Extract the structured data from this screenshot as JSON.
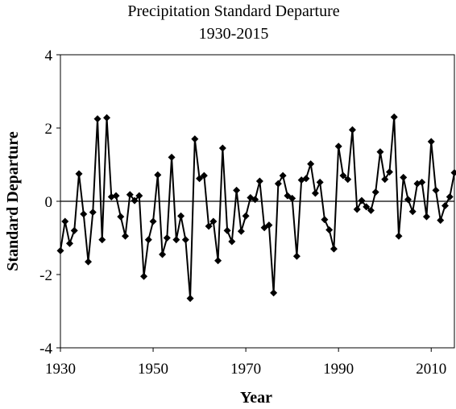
{
  "chart_data": {
    "type": "line",
    "title": "Precipitation Standard Departure",
    "subtitle": "1930-2015",
    "x_label": "Year",
    "y_label": "Standard Departure",
    "x": [
      1930,
      1931,
      1932,
      1933,
      1934,
      1935,
      1936,
      1937,
      1938,
      1939,
      1940,
      1941,
      1942,
      1943,
      1944,
      1945,
      1946,
      1947,
      1948,
      1949,
      1950,
      1951,
      1952,
      1953,
      1954,
      1955,
      1956,
      1957,
      1958,
      1959,
      1960,
      1961,
      1962,
      1963,
      1964,
      1965,
      1966,
      1967,
      1968,
      1969,
      1970,
      1971,
      1972,
      1973,
      1974,
      1975,
      1976,
      1977,
      1978,
      1979,
      1980,
      1981,
      1982,
      1983,
      1984,
      1985,
      1986,
      1987,
      1988,
      1989,
      1990,
      1991,
      1992,
      1993,
      1994,
      1995,
      1996,
      1997,
      1998,
      1999,
      2000,
      2001,
      2002,
      2003,
      2004,
      2005,
      2006,
      2007,
      2008,
      2009,
      2010,
      2011,
      2012,
      2013,
      2014,
      2015
    ],
    "series": [
      {
        "color": "#000000",
        "values": [
          -1.35,
          -0.55,
          -1.15,
          -0.8,
          0.75,
          -0.35,
          -1.65,
          -0.3,
          2.25,
          -1.05,
          2.28,
          0.12,
          0.15,
          -0.42,
          -0.95,
          0.18,
          0.02,
          0.15,
          -2.05,
          -1.05,
          -0.55,
          0.72,
          -1.45,
          -1.0,
          1.2,
          -1.05,
          -0.4,
          -1.05,
          -2.65,
          1.7,
          0.62,
          0.7,
          -0.68,
          -0.55,
          -1.62,
          1.45,
          -0.8,
          -1.1,
          0.3,
          -0.82,
          -0.4,
          0.1,
          0.05,
          0.55,
          -0.72,
          -0.65,
          -2.5,
          0.48,
          0.7,
          0.15,
          0.08,
          -1.5,
          0.58,
          0.62,
          1.02,
          0.22,
          0.52,
          -0.5,
          -0.78,
          -1.3,
          1.5,
          0.7,
          0.6,
          1.95,
          -0.22,
          0.02,
          -0.15,
          -0.25,
          0.25,
          1.35,
          0.6,
          0.8,
          2.3,
          -0.95,
          0.65,
          0.05,
          -0.28,
          0.48,
          0.52,
          -0.42,
          1.63,
          0.3,
          -0.52,
          -0.12,
          0.12,
          0.78
        ]
      }
    ],
    "xlim": [
      1930,
      2015
    ],
    "xticks": [
      1930,
      1950,
      1970,
      1990,
      2010
    ],
    "ylim": [
      -4,
      4
    ],
    "yticks": [
      -4,
      -2,
      0,
      2,
      4
    ],
    "zero_line": true
  }
}
